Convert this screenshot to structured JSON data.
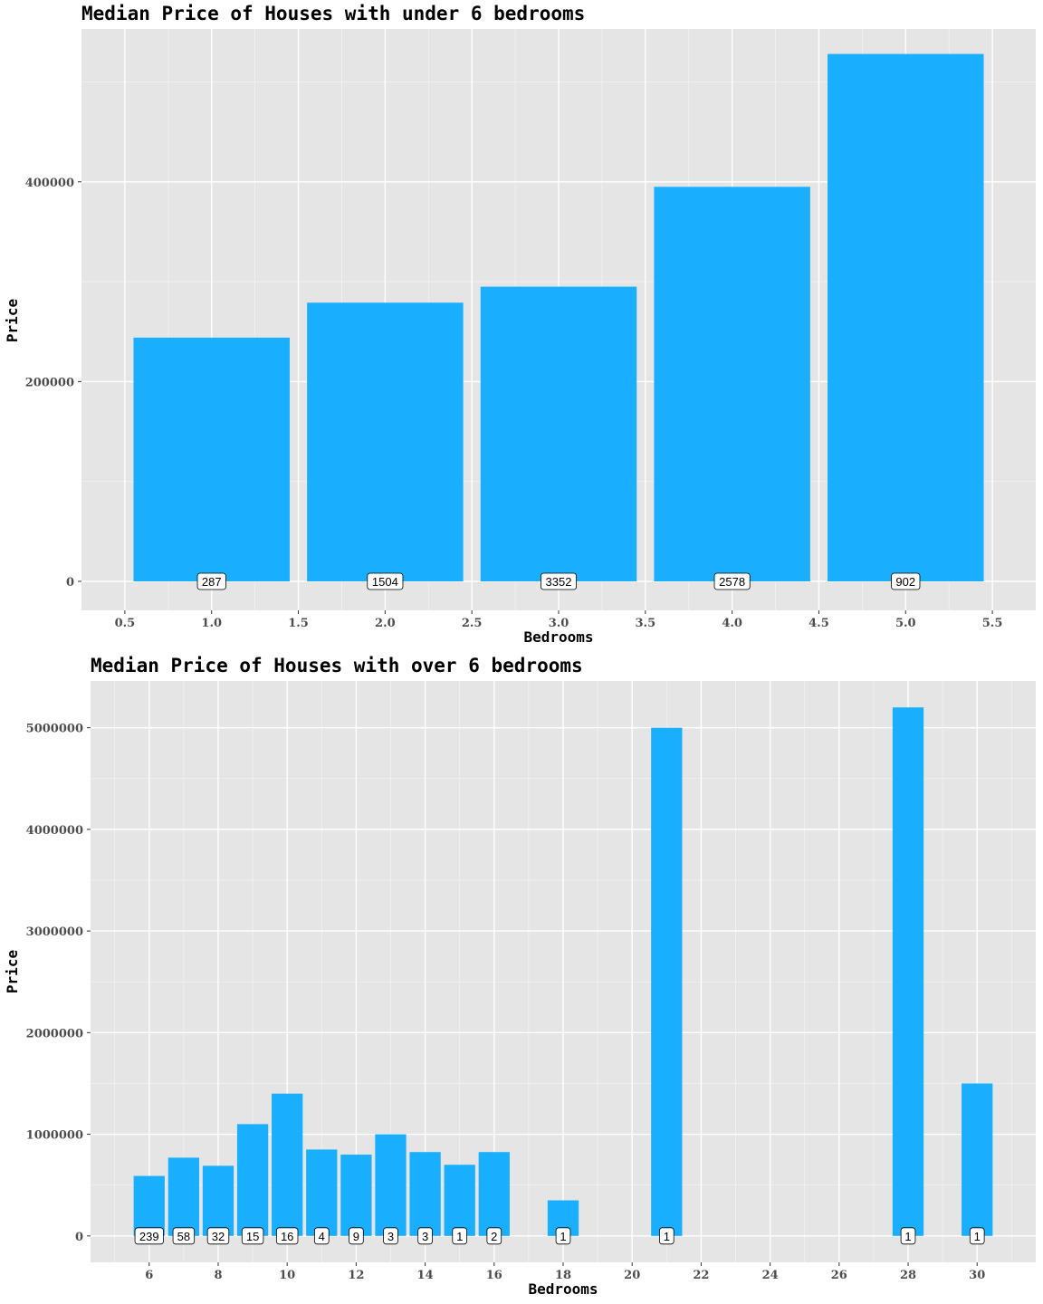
{
  "chart_data": [
    {
      "type": "bar",
      "title": "Median Price of Houses with under 6 bedrooms",
      "xlabel": "Bedrooms",
      "ylabel": "Price",
      "xlim": [
        0.5,
        5.5
      ],
      "ylim": [
        0,
        500000
      ],
      "xticks": [
        "0.5",
        "1.0",
        "1.5",
        "2.0",
        "2.5",
        "3.0",
        "3.5",
        "4.0",
        "4.5",
        "5.0",
        "5.5"
      ],
      "yticks": [
        "0",
        "200000",
        "400000"
      ],
      "grid": true,
      "bar_color": "#1aaeff",
      "bars": [
        {
          "x": 1,
          "value": 244000,
          "count": "287"
        },
        {
          "x": 2,
          "value": 279000,
          "count": "1504"
        },
        {
          "x": 3,
          "value": 295000,
          "count": "3352"
        },
        {
          "x": 4,
          "value": 395000,
          "count": "2578"
        },
        {
          "x": 5,
          "value": 528000,
          "count": "902"
        }
      ]
    },
    {
      "type": "bar",
      "title": "Median Price of Houses with over 6 bedrooms",
      "xlabel": "Bedrooms",
      "ylabel": "Price",
      "xlim": [
        5,
        31
      ],
      "ylim": [
        0,
        5000000
      ],
      "xticks": [
        "6",
        "8",
        "10",
        "12",
        "14",
        "16",
        "18",
        "20",
        "22",
        "24",
        "26",
        "28",
        "30"
      ],
      "yticks": [
        "0",
        "1000000",
        "2000000",
        "3000000",
        "4000000",
        "5000000"
      ],
      "grid": true,
      "bar_color": "#1aaeff",
      "bars": [
        {
          "x": 6,
          "value": 590000,
          "count": "239"
        },
        {
          "x": 7,
          "value": 770000,
          "count": "58"
        },
        {
          "x": 8,
          "value": 690000,
          "count": "32"
        },
        {
          "x": 9,
          "value": 1100000,
          "count": "15"
        },
        {
          "x": 10,
          "value": 1400000,
          "count": "16"
        },
        {
          "x": 11,
          "value": 850000,
          "count": "4"
        },
        {
          "x": 12,
          "value": 800000,
          "count": "9"
        },
        {
          "x": 13,
          "value": 1000000,
          "count": "3"
        },
        {
          "x": 14,
          "value": 825000,
          "count": "3"
        },
        {
          "x": 15,
          "value": 700000,
          "count": "1"
        },
        {
          "x": 16,
          "value": 825000,
          "count": "2"
        },
        {
          "x": 18,
          "value": 350000,
          "count": "1"
        },
        {
          "x": 21,
          "value": 5000000,
          "count": "1"
        },
        {
          "x": 28,
          "value": 5200000,
          "count": "1"
        },
        {
          "x": 30,
          "value": 1500000,
          "count": "1"
        }
      ]
    }
  ]
}
